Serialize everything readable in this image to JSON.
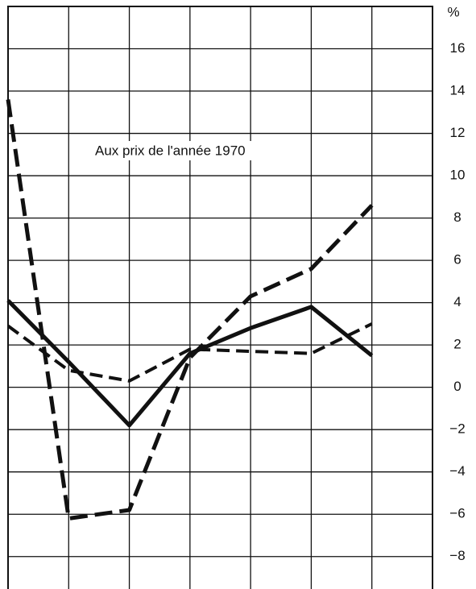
{
  "chart_data": {
    "type": "line",
    "annotation": "Aux prix de l'année 1970",
    "y_unit": "%",
    "x": [
      0,
      1,
      2,
      3,
      4,
      5,
      6
    ],
    "xlim": [
      0,
      7
    ],
    "ylim": [
      -9.8,
      18
    ],
    "yticks": [
      {
        "value": -8,
        "label": "−8"
      },
      {
        "value": -6,
        "label": "−6"
      },
      {
        "value": -4,
        "label": "−4"
      },
      {
        "value": -2,
        "label": "−2"
      },
      0,
      2,
      4,
      6,
      8,
      10,
      12,
      14,
      16
    ],
    "grid": true,
    "series": [
      {
        "color": "#111111",
        "linestyle": "solid",
        "values": [
          4.1,
          1.2,
          -1.8,
          1.6,
          2.8,
          3.8,
          1.5
        ]
      },
      {
        "color": "#111111",
        "linestyle": "dashed",
        "values": [
          13.6,
          -6.2,
          -5.8,
          1.4,
          4.3,
          5.6,
          8.6
        ]
      },
      {
        "color": "#111111",
        "linestyle": "dashed",
        "values": [
          2.9,
          0.8,
          0.3,
          1.8,
          1.7,
          1.6,
          3.0
        ]
      }
    ]
  }
}
